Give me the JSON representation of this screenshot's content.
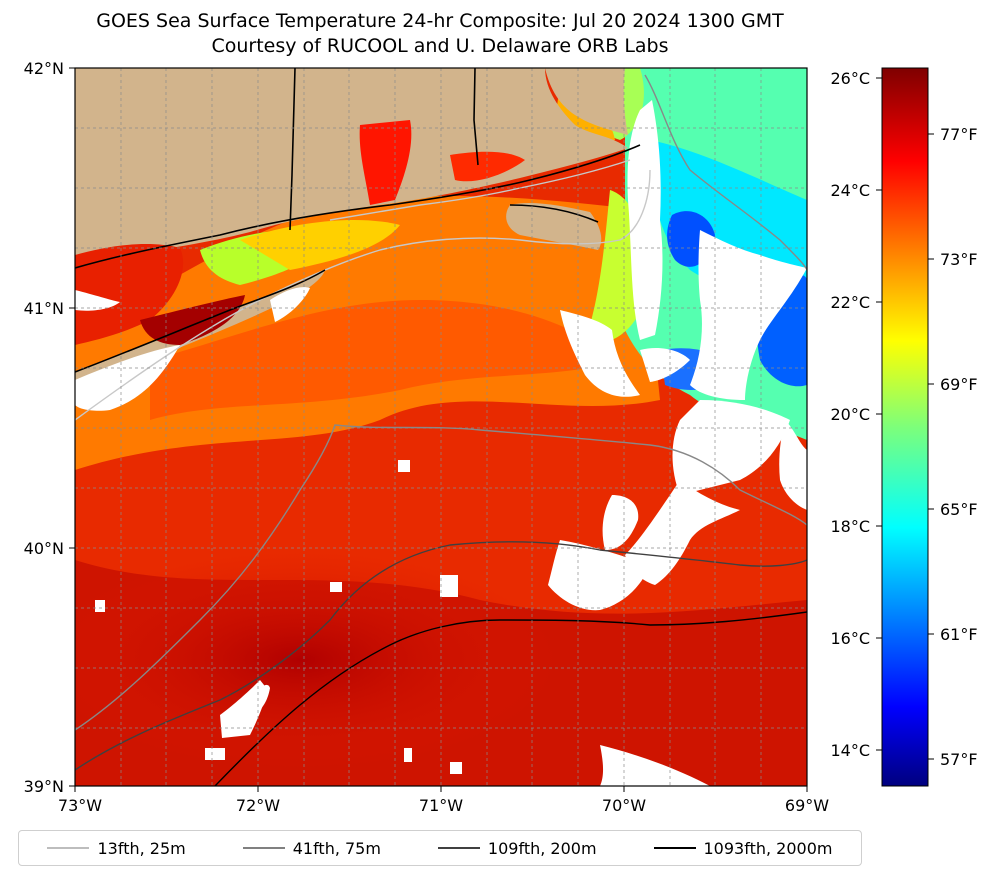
{
  "title": "GOES Sea Surface Temperature 24-hr Composite: Jul 20 2024 1300 GMT",
  "subtitle": "Courtesy of RUCOOL and U. Delaware ORB Labs",
  "lat_ticks": [
    "42°N",
    "41°N",
    "40°N",
    "39°N"
  ],
  "lon_ticks": [
    "73°W",
    "72°W",
    "71°W",
    "70°W",
    "69°W"
  ],
  "extent": {
    "lon": [
      -73,
      -69
    ],
    "lat": [
      39,
      42
    ]
  },
  "colorbar": {
    "celsius_ticks": [
      "26°C",
      "24°C",
      "22°C",
      "20°C",
      "18°C",
      "16°C",
      "14°C"
    ],
    "fahrenheit_ticks": [
      "77°F",
      "73°F",
      "69°F",
      "65°F",
      "61°F",
      "57°F"
    ],
    "range_c": [
      13.5,
      26.3
    ],
    "colormap": "jet"
  },
  "legend": [
    {
      "label": "13fth, 25m",
      "color": "#bdbdbd",
      "width": 2
    },
    {
      "label": "41fth, 75m",
      "color": "#808080",
      "width": 2
    },
    {
      "label": "109fth, 200m",
      "color": "#404040",
      "width": 2
    },
    {
      "label": "1093fth, 2000m",
      "color": "#000000",
      "width": 2
    }
  ],
  "colors": {
    "land": "#d2b48c",
    "no_data": "#ffffff"
  }
}
